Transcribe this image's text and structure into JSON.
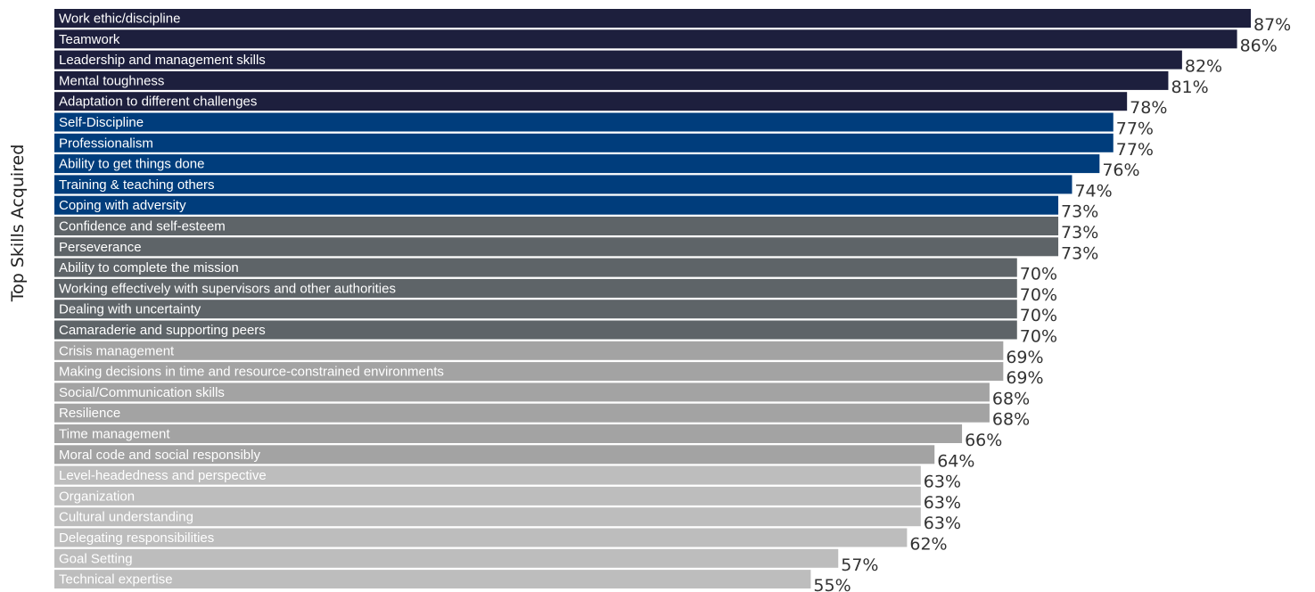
{
  "chart_data": {
    "type": "bar",
    "orientation": "horizontal",
    "ylabel": "Top Skills Acquired",
    "value_suffix": "%",
    "categories": [
      "Work ethic/discipline",
      "Teamwork",
      "Leadership and management skills",
      "Mental toughness",
      "Adaptation to different challenges",
      "Self-Discipline",
      "Professionalism",
      "Ability to get things done",
      "Training & teaching others",
      "Coping with adversity",
      "Confidence and self-esteem",
      "Perseverance",
      "Ability to complete the mission",
      "Working effectively with supervisors and other authorities",
      "Dealing with uncertainty",
      "Camaraderie and supporting peers",
      "Crisis management",
      "Making decisions in time and resource-constrained environments",
      "Social/Communication skills",
      "Resilience",
      "Time management",
      "Moral code and social responsibly",
      "Level-headedness and perspective",
      "Organization",
      "Cultural understanding",
      "Delegating responsibilities",
      "Goal Setting",
      "Technical expertise"
    ],
    "values": [
      87,
      86,
      82,
      81,
      78,
      77,
      77,
      76,
      74,
      73,
      73,
      73,
      70,
      70,
      70,
      70,
      69,
      69,
      68,
      68,
      66,
      64,
      63,
      63,
      63,
      62,
      57,
      55
    ],
    "colors": [
      "#1d1f3d",
      "#1d1f3d",
      "#1d1f3d",
      "#1d1f3d",
      "#1d1f3d",
      "#003d7c",
      "#003d7c",
      "#003d7c",
      "#003d7c",
      "#003d7c",
      "#5e6468",
      "#5e6468",
      "#5e6468",
      "#5e6468",
      "#5e6468",
      "#5e6468",
      "#a3a3a3",
      "#a3a3a3",
      "#a3a3a3",
      "#a3a3a3",
      "#a3a3a3",
      "#a3a3a3",
      "#bdbdbd",
      "#bdbdbd",
      "#bdbdbd",
      "#bdbdbd",
      "#bdbdbd",
      "#bdbdbd"
    ],
    "grid": false,
    "legend": "none"
  }
}
